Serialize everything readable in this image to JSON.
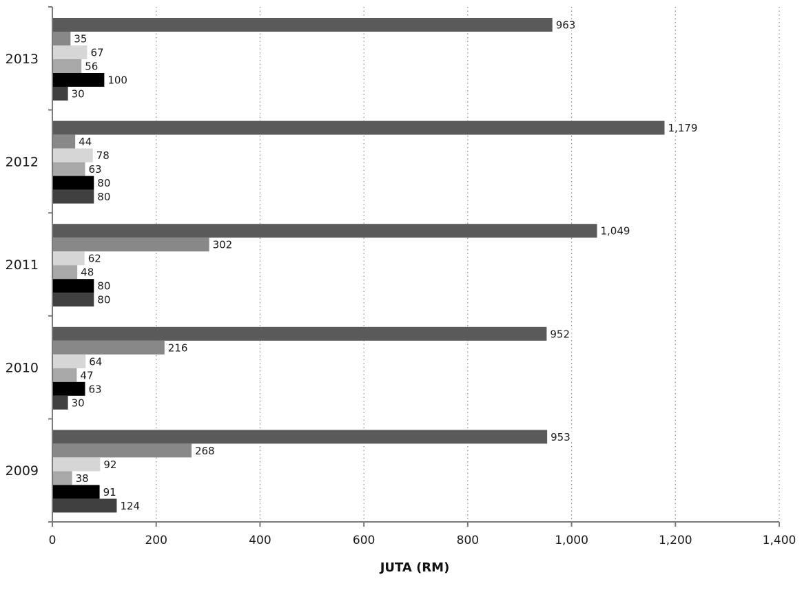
{
  "chart_data": {
    "type": "bar",
    "orientation": "horizontal",
    "categories": [
      "2013",
      "2012",
      "2011",
      "2010",
      "2009"
    ],
    "series": [
      {
        "values": [
          963,
          1179,
          1049,
          952,
          953
        ],
        "labels": [
          "963",
          "1,179",
          "1,049",
          "952",
          "953"
        ],
        "color": "#5a5a5a"
      },
      {
        "values": [
          35,
          44,
          302,
          216,
          268
        ],
        "labels": [
          "35",
          "44",
          "302",
          "216",
          "268"
        ],
        "color": "#888888"
      },
      {
        "values": [
          67,
          78,
          62,
          64,
          92
        ],
        "labels": [
          "67",
          "78",
          "62",
          "64",
          "92"
        ],
        "color": "#d6d6d6"
      },
      {
        "values": [
          56,
          63,
          48,
          47,
          38
        ],
        "labels": [
          "56",
          "63",
          "48",
          "47",
          "38"
        ],
        "color": "#a8a8a8"
      },
      {
        "values": [
          100,
          80,
          80,
          63,
          91
        ],
        "labels": [
          "100",
          "80",
          "80",
          "63",
          "91"
        ],
        "color": "#000000"
      },
      {
        "values": [
          30,
          80,
          80,
          30,
          124
        ],
        "labels": [
          "30",
          "80",
          "80",
          "30",
          "124"
        ],
        "color": "#404040"
      }
    ],
    "xlabel": "JUTA (RM)",
    "ylabel": "",
    "xlim": [
      0,
      1400
    ],
    "xticks": [
      0,
      200,
      400,
      600,
      800,
      1000,
      1200,
      1400
    ],
    "xtick_labels": [
      "0",
      "200",
      "400",
      "600",
      "800",
      "1,000",
      "1,200",
      "1,400"
    ],
    "grid": "vertical-dotted",
    "legend": "none"
  }
}
